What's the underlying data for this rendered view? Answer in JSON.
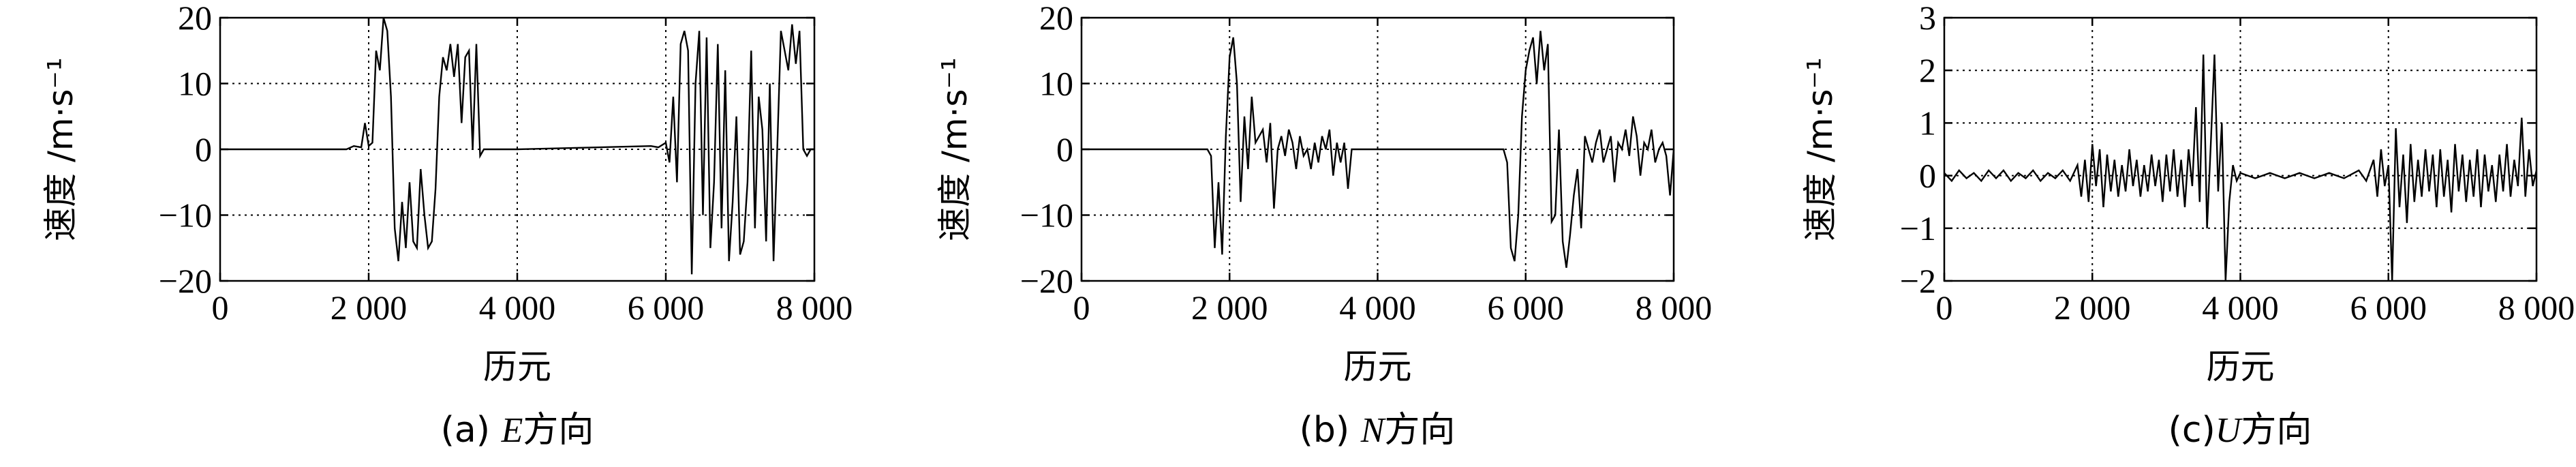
{
  "chart_data": [
    {
      "type": "line",
      "caption_prefix": "(a) ",
      "caption_letter": "E",
      "caption_suffix": "方向",
      "xlabel": "历元",
      "ylabel": "速度 /m·s⁻¹",
      "xlim": [
        0,
        8000
      ],
      "ylim": [
        -20,
        20
      ],
      "xticks": [
        0,
        2000,
        4000,
        6000,
        8000
      ],
      "xtick_labels": [
        "0",
        "2 000",
        "4 000",
        "6 000",
        "8 000"
      ],
      "yticks": [
        -20,
        -10,
        0,
        10,
        20
      ],
      "ytick_labels": [
        "−20",
        "−10",
        "0",
        "10",
        "20"
      ],
      "grid": true,
      "series": [
        {
          "x": [
            0,
            1700,
            1800,
            1900,
            1950,
            2000,
            2050,
            2100,
            2150,
            2200,
            2250,
            2300,
            2350,
            2400,
            2450,
            2500,
            2550,
            2600,
            2650,
            2700,
            2750,
            2800,
            2850,
            2900,
            2950,
            3000,
            3050,
            3100,
            3150,
            3200,
            3250,
            3300,
            3350,
            3400,
            3450,
            3500,
            3550,
            3600,
            3650,
            3700,
            3750,
            3800,
            3850,
            3900,
            3950,
            4000,
            5800,
            5900,
            6000,
            6050,
            6100,
            6150,
            6200,
            6250,
            6300,
            6350,
            6400,
            6450,
            6500,
            6550,
            6600,
            6650,
            6700,
            6750,
            6800,
            6850,
            6900,
            6950,
            7000,
            7050,
            7100,
            7150,
            7200,
            7250,
            7300,
            7350,
            7400,
            7450,
            7500,
            7550,
            7600,
            7650,
            7700,
            7750,
            7800,
            7850,
            7900,
            7950,
            8000
          ],
          "y": [
            0,
            0,
            0.5,
            0.3,
            4,
            0.5,
            1,
            15,
            12,
            20,
            18,
            8,
            -12,
            -17,
            -8,
            -15,
            -5,
            -14,
            -15,
            -3,
            -10,
            -15,
            -14,
            -6,
            8,
            14,
            12,
            16,
            11,
            16,
            4,
            14,
            15,
            0,
            16,
            -1,
            0,
            0,
            0,
            0,
            0,
            0,
            0,
            0,
            0,
            0,
            0.5,
            0.3,
            1,
            -2,
            8,
            -5,
            16,
            18,
            15,
            -19,
            10,
            18,
            -10,
            17,
            -15,
            -5,
            16,
            -12,
            12,
            -17,
            -8,
            5,
            -16,
            -14,
            -5,
            15,
            -12,
            8,
            3,
            -14,
            10,
            -17,
            0,
            18,
            15,
            12,
            19,
            13,
            18,
            0,
            -1,
            0,
            0
          ]
        }
      ]
    },
    {
      "type": "line",
      "caption_prefix": "(b) ",
      "caption_letter": "N",
      "caption_suffix": "方向",
      "xlabel": "历元",
      "ylabel": "速度 /m·s⁻¹",
      "xlim": [
        0,
        8000
      ],
      "ylim": [
        -20,
        20
      ],
      "xticks": [
        0,
        2000,
        4000,
        6000,
        8000
      ],
      "xtick_labels": [
        "0",
        "2 000",
        "4 000",
        "6 000",
        "8 000"
      ],
      "yticks": [
        -20,
        -10,
        0,
        10,
        20
      ],
      "ytick_labels": [
        "−20",
        "−10",
        "0",
        "10",
        "20"
      ],
      "grid": true,
      "series": [
        {
          "x": [
            0,
            1700,
            1750,
            1800,
            1850,
            1900,
            1950,
            2000,
            2050,
            2100,
            2150,
            2200,
            2250,
            2300,
            2350,
            2400,
            2450,
            2500,
            2550,
            2600,
            2650,
            2700,
            2750,
            2800,
            2850,
            2900,
            2950,
            3000,
            3050,
            3100,
            3150,
            3200,
            3250,
            3300,
            3350,
            3400,
            3450,
            3500,
            3550,
            3600,
            3650,
            3700,
            5700,
            5750,
            5800,
            5850,
            5900,
            5950,
            6000,
            6050,
            6100,
            6150,
            6200,
            6250,
            6300,
            6350,
            6400,
            6450,
            6500,
            6550,
            6600,
            6650,
            6700,
            6750,
            6800,
            6850,
            6900,
            6950,
            7000,
            7050,
            7100,
            7150,
            7200,
            7250,
            7300,
            7350,
            7400,
            7450,
            7500,
            7550,
            7600,
            7650,
            7700,
            7750,
            7800,
            7850,
            7900,
            7950,
            8000
          ],
          "y": [
            0,
            0,
            -1,
            -15,
            -5,
            -16,
            2,
            14,
            17,
            10,
            -8,
            5,
            -3,
            8,
            1,
            2,
            3,
            -2,
            4,
            -9,
            0,
            2,
            -1,
            3,
            1,
            -3,
            2,
            -1,
            0,
            -3,
            1,
            -2,
            2,
            0,
            3,
            -4,
            1,
            -2,
            1,
            -6,
            0,
            0,
            0,
            -2,
            -15,
            -17,
            -10,
            5,
            12,
            15,
            17,
            10,
            18,
            12,
            16,
            -11,
            -10,
            3,
            -14,
            -18,
            -13,
            -7,
            -3,
            -12,
            2,
            0,
            -2,
            1,
            3,
            -2,
            0,
            2,
            -5,
            1,
            0,
            3,
            -1,
            5,
            2,
            -4,
            1,
            0,
            3,
            -2,
            0,
            1,
            -1,
            -7,
            0
          ]
        }
      ]
    },
    {
      "type": "line",
      "caption_prefix": "(c)",
      "caption_letter": "U",
      "caption_suffix": "方向",
      "xlabel": "历元",
      "ylabel": "速度 /m·s⁻¹",
      "xlim": [
        0,
        8000
      ],
      "ylim": [
        -2,
        3
      ],
      "xticks": [
        0,
        2000,
        4000,
        6000,
        8000
      ],
      "xtick_labels": [
        "0",
        "2 000",
        "4 000",
        "6 000",
        "8 000"
      ],
      "yticks": [
        -2,
        -1,
        0,
        1,
        2,
        3
      ],
      "ytick_labels": [
        "−2",
        "−1",
        "0",
        "1",
        "2",
        "3"
      ],
      "grid": true,
      "series": [
        {
          "x": [
            0,
            100,
            200,
            300,
            400,
            500,
            600,
            700,
            800,
            900,
            1000,
            1100,
            1200,
            1300,
            1400,
            1500,
            1600,
            1700,
            1800,
            1850,
            1900,
            1950,
            2000,
            2050,
            2100,
            2150,
            2200,
            2250,
            2300,
            2350,
            2400,
            2450,
            2500,
            2550,
            2600,
            2650,
            2700,
            2750,
            2800,
            2850,
            2900,
            2950,
            3000,
            3050,
            3100,
            3150,
            3200,
            3250,
            3300,
            3350,
            3400,
            3450,
            3500,
            3550,
            3600,
            3650,
            3700,
            3750,
            3800,
            3850,
            3900,
            3950,
            4000,
            4200,
            4400,
            4600,
            4800,
            5000,
            5200,
            5400,
            5600,
            5700,
            5800,
            5850,
            5900,
            5950,
            6000,
            6050,
            6100,
            6150,
            6200,
            6250,
            6300,
            6350,
            6400,
            6450,
            6500,
            6550,
            6600,
            6650,
            6700,
            6750,
            6800,
            6850,
            6900,
            6950,
            7000,
            7050,
            7100,
            7150,
            7200,
            7250,
            7300,
            7350,
            7400,
            7450,
            7500,
            7550,
            7600,
            7650,
            7700,
            7750,
            7800,
            7850,
            7900,
            7950,
            8000
          ],
          "y": [
            0.05,
            -0.1,
            0.1,
            -0.05,
            0.05,
            -0.1,
            0.1,
            -0.05,
            0.1,
            -0.1,
            0.05,
            -0.05,
            0.1,
            -0.1,
            0.05,
            -0.05,
            0.1,
            -0.1,
            0.2,
            -0.4,
            0.3,
            -0.5,
            0.6,
            -0.2,
            0.5,
            -0.6,
            0.4,
            -0.3,
            0.3,
            -0.4,
            0.2,
            -0.3,
            0.5,
            -0.2,
            0.3,
            -0.4,
            0.2,
            -0.3,
            0.4,
            -0.2,
            0.3,
            -0.5,
            0.4,
            -0.3,
            0.5,
            -0.4,
            0.3,
            -0.6,
            0.5,
            -0.2,
            1.3,
            -0.5,
            2.3,
            -1.0,
            0.6,
            2.3,
            -0.3,
            1.0,
            -2.0,
            -0.5,
            0.2,
            -0.1,
            0.05,
            -0.05,
            0.05,
            -0.05,
            0.05,
            -0.05,
            0.05,
            -0.05,
            0.1,
            -0.1,
            0.3,
            -0.4,
            0.5,
            -0.2,
            0.2,
            -2.0,
            0.9,
            -0.6,
            0.4,
            -0.9,
            0.6,
            -0.5,
            0.3,
            -0.4,
            0.5,
            -0.3,
            0.4,
            -0.6,
            0.5,
            -0.4,
            0.3,
            -0.7,
            0.6,
            -0.3,
            0.4,
            -0.5,
            0.3,
            -0.4,
            0.5,
            -0.6,
            0.4,
            -0.3,
            0.2,
            -0.5,
            0.4,
            -0.3,
            0.6,
            -0.4,
            0.3,
            -0.2,
            1.1,
            -0.4,
            0.5,
            -0.2,
            0.1
          ]
        }
      ]
    }
  ]
}
